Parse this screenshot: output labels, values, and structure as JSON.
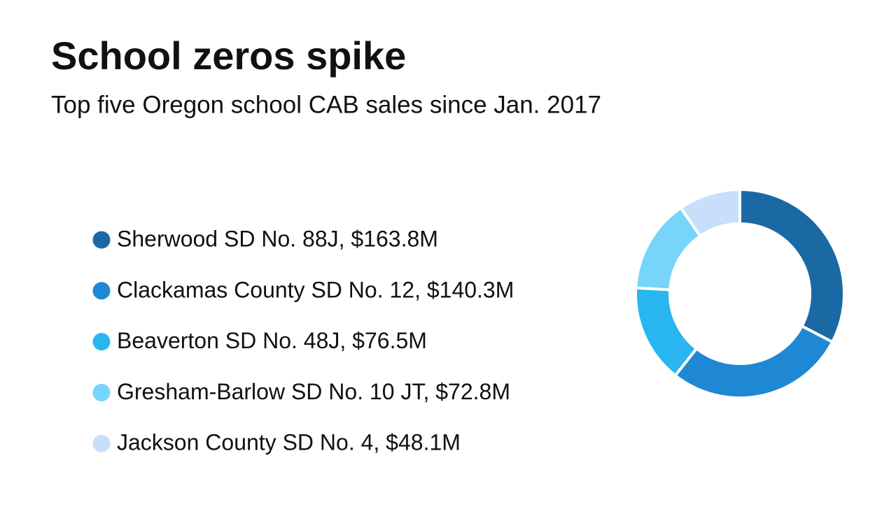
{
  "chart_data": {
    "type": "donut",
    "title": "School zeros spike",
    "subtitle": "Top five Oregon school CAB sales since Jan. 2017",
    "categories": [
      "Sherwood SD No. 88J, $163.8M",
      "Clackamas County SD No. 12, $140.3M",
      "Beaverton SD No. 48J, $76.5M",
      "Gresham-Barlow SD No. 10 JT, $72.8M",
      "Jackson County SD No. 4, $48.1M"
    ],
    "values": [
      163.8,
      140.3,
      76.5,
      72.8,
      48.1
    ],
    "colors": [
      "#1a69a5",
      "#1e88d4",
      "#29b6f0",
      "#77d4fb",
      "#c7dffa"
    ]
  }
}
